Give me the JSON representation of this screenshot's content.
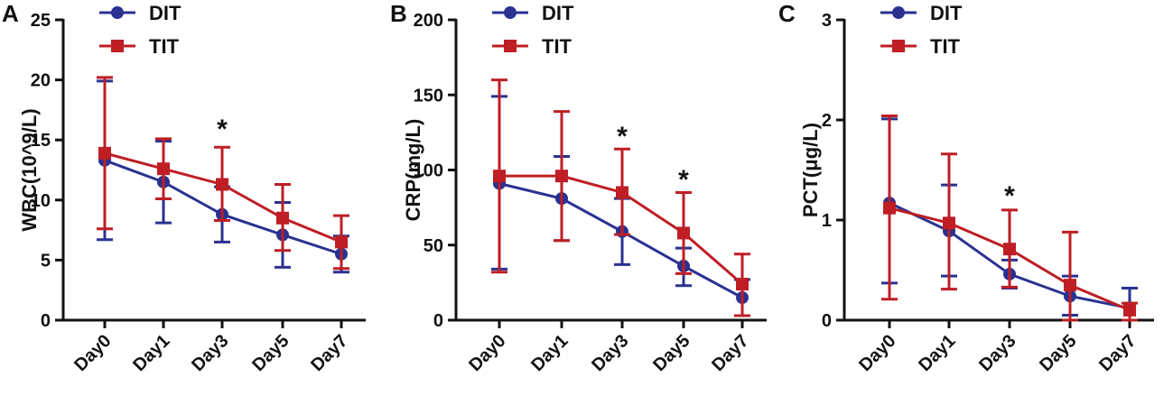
{
  "colors": {
    "dit": "#2a3191",
    "tit": "#be1e24",
    "axis": "#111111"
  },
  "chart_data": [
    {
      "type": "line",
      "panel_label": "A",
      "title": "",
      "xlabel": "",
      "ylabel": "WBC(10^9/L)",
      "categories": [
        "Day0",
        "Day1",
        "Day3",
        "Day5",
        "Day7"
      ],
      "ylim": [
        0,
        25
      ],
      "yticks": [
        0,
        5,
        10,
        15,
        20,
        25
      ],
      "yticklabels": [
        "0",
        "5",
        "10",
        "15",
        "20",
        "25"
      ],
      "legend": [
        "DIT",
        "TIT"
      ],
      "legend_position": "top-left",
      "series": [
        {
          "name": "DIT",
          "marker": "circle",
          "values": [
            13.3,
            11.5,
            8.8,
            7.1,
            5.5
          ],
          "err_low": [
            6.7,
            8.1,
            6.5,
            4.4,
            4.0
          ],
          "err_high": [
            19.9,
            14.9,
            11.1,
            9.8,
            7.0
          ]
        },
        {
          "name": "TIT",
          "marker": "square",
          "values": [
            13.9,
            12.6,
            11.3,
            8.5,
            6.5
          ],
          "err_low": [
            7.6,
            10.1,
            8.3,
            5.8,
            4.3
          ],
          "err_high": [
            20.2,
            15.1,
            14.4,
            11.3,
            8.7
          ]
        }
      ],
      "annotations": [
        {
          "category": "Day3",
          "text": "*",
          "y": 16.2
        }
      ]
    },
    {
      "type": "line",
      "panel_label": "B",
      "title": "",
      "xlabel": "",
      "ylabel": "CRP(mg/L)",
      "categories": [
        "Day0",
        "Day1",
        "Day3",
        "Day5",
        "Day7"
      ],
      "ylim": [
        0,
        200
      ],
      "yticks": [
        0,
        50,
        100,
        150,
        200
      ],
      "yticklabels": [
        "0",
        "50",
        "100",
        "150",
        "200"
      ],
      "legend": [
        "DIT",
        "TIT"
      ],
      "legend_position": "top-left",
      "series": [
        {
          "name": "DIT",
          "marker": "circle",
          "values": [
            91,
            81,
            59,
            36,
            15
          ],
          "err_low": [
            34,
            53,
            37,
            23,
            3
          ],
          "err_high": [
            149,
            109,
            81,
            48,
            27
          ]
        },
        {
          "name": "TIT",
          "marker": "square",
          "values": [
            96,
            96,
            85,
            58,
            24
          ],
          "err_low": [
            32,
            53,
            57,
            31,
            3
          ],
          "err_high": [
            160,
            139,
            114,
            85,
            44
          ]
        }
      ],
      "annotations": [
        {
          "category": "Day3",
          "text": "*",
          "y": 125
        },
        {
          "category": "Day5",
          "text": "*",
          "y": 96
        }
      ]
    },
    {
      "type": "line",
      "panel_label": "C",
      "title": "",
      "xlabel": "",
      "ylabel": "PCT(μg/L)",
      "categories": [
        "Day0",
        "Day1",
        "Day3",
        "Day5",
        "Day7"
      ],
      "ylim": [
        0,
        3
      ],
      "yticks": [
        0,
        1,
        2,
        3
      ],
      "yticklabels": [
        "0",
        "1",
        "2",
        "3"
      ],
      "legend": [
        "DIT",
        "TIT"
      ],
      "legend_position": "top-left",
      "series": [
        {
          "name": "DIT",
          "marker": "circle",
          "values": [
            1.17,
            0.89,
            0.46,
            0.24,
            0.12
          ],
          "err_low": [
            0.37,
            0.44,
            0.32,
            0.05,
            0.0
          ],
          "err_high": [
            2.01,
            1.35,
            0.6,
            0.44,
            0.32
          ]
        },
        {
          "name": "TIT",
          "marker": "square",
          "values": [
            1.12,
            0.97,
            0.71,
            0.35,
            0.1
          ],
          "err_low": [
            0.21,
            0.31,
            0.33,
            0.0,
            0.0
          ],
          "err_high": [
            2.04,
            1.66,
            1.1,
            0.88,
            0.17
          ]
        }
      ],
      "annotations": [
        {
          "category": "Day3",
          "text": "*",
          "y": 1.28
        }
      ]
    }
  ]
}
